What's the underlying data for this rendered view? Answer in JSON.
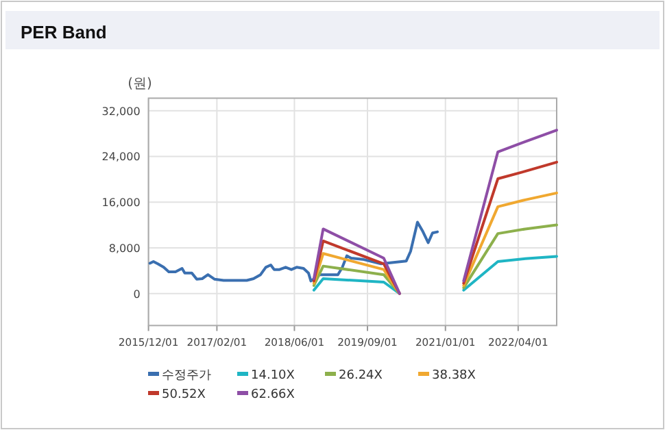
{
  "chart_data": {
    "type": "line",
    "title": "PER Band",
    "ylabel": "(원)",
    "grid": true,
    "legend": "bottom",
    "marker": "none",
    "line_style": "solid",
    "xlim": [
      "2015-12-01",
      "2022-11-28"
    ],
    "xticks": [
      {
        "value": "2015-12-01",
        "label": "2015/12/01"
      },
      {
        "value": "2017-02-01",
        "label": "2017/02/01"
      },
      {
        "value": "2018-06-01",
        "label": "2018/06/01"
      },
      {
        "value": "2019-09-01",
        "label": "2019/09/01"
      },
      {
        "value": "2021-01-01",
        "label": "2021/01/01"
      },
      {
        "value": "2022-04-01",
        "label": "2022/04/01"
      }
    ],
    "ylim": [
      -5600,
      34200
    ],
    "yticks": [
      {
        "value": 0,
        "label": "0"
      },
      {
        "value": 8000,
        "label": "8,000"
      },
      {
        "value": 16000,
        "label": "16,000"
      },
      {
        "value": 24000,
        "label": "24,000"
      },
      {
        "value": 32000,
        "label": "32,000"
      }
    ],
    "series": [
      {
        "name": "수정주가",
        "color": "#3a6fb0",
        "x": [
          "2015-12-10",
          "2016-01-01",
          "2016-01-28",
          "2016-03-05",
          "2016-04-06",
          "2016-05-18",
          "2016-06-28",
          "2016-07-15",
          "2016-08-28",
          "2016-09-28",
          "2016-11-01",
          "2016-12-07",
          "2017-01-18",
          "2017-03-15",
          "2017-08-07",
          "2017-09-18",
          "2017-11-01",
          "2017-12-04",
          "2018-01-04",
          "2018-01-25",
          "2018-02-28",
          "2018-04-07",
          "2018-05-13",
          "2018-06-15",
          "2018-07-28",
          "2018-08-28",
          "2018-09-12",
          "2018-11-07",
          "2019-02-28",
          "2019-03-28",
          "2019-04-25",
          "2019-05-22",
          "2019-08-01",
          "2019-11-25",
          "2020-01-22",
          "2020-05-01",
          "2020-05-28",
          "2020-07-10",
          "2020-08-10",
          "2020-09-15",
          "2020-10-12",
          "2020-11-12"
        ],
        "values": [
          5300,
          5600,
          5200,
          4600,
          3800,
          3800,
          4400,
          3600,
          3600,
          2500,
          2600,
          3300,
          2500,
          2300,
          2300,
          2600,
          3300,
          4600,
          5000,
          4200,
          4200,
          4600,
          4200,
          4600,
          4400,
          3600,
          2200,
          3300,
          3300,
          4600,
          6600,
          6200,
          6000,
          5200,
          5400,
          5700,
          7400,
          12500,
          11000,
          8900,
          10600,
          10800
        ]
      },
      {
        "name": "14.10X",
        "color": "#1fb5c4",
        "x": [
          "2018-10-01",
          "2018-11-28",
          "2019-12-12",
          "2020-03-20"
        ],
        "values": [
          600,
          2600,
          2000,
          0
        ]
      },
      {
        "name": "26.24X",
        "color": "#8db04c",
        "x": [
          "2018-10-01",
          "2018-11-28",
          "2019-12-12",
          "2020-03-20"
        ],
        "values": [
          1400,
          4800,
          3300,
          0
        ]
      },
      {
        "name": "38.38X",
        "color": "#f0a830",
        "x": [
          "2018-10-01",
          "2018-11-28",
          "2019-12-12",
          "2020-03-20"
        ],
        "values": [
          1800,
          7000,
          4200,
          0
        ]
      },
      {
        "name": "50.52X",
        "color": "#c0392b",
        "x": [
          "2018-10-01",
          "2018-11-28",
          "2019-12-12",
          "2020-03-20"
        ],
        "values": [
          2200,
          9200,
          5200,
          0
        ]
      },
      {
        "name": "62.66X",
        "color": "#8e4ea6",
        "x": [
          "2018-10-01",
          "2018-11-28",
          "2019-12-12",
          "2020-03-20"
        ],
        "values": [
          2600,
          11300,
          6200,
          0
        ]
      },
      {
        "color": "#1fb5c4",
        "x": [
          "2021-04-25",
          "2021-11-25",
          "2022-05-15",
          "2022-11-28"
        ],
        "values": [
          600,
          5600,
          6100,
          6500
        ]
      },
      {
        "color": "#8db04c",
        "x": [
          "2021-04-25",
          "2021-11-25",
          "2022-05-15",
          "2022-11-28"
        ],
        "values": [
          1000,
          10500,
          11300,
          12000
        ]
      },
      {
        "color": "#f0a830",
        "x": [
          "2021-04-25",
          "2021-11-25",
          "2022-05-15",
          "2022-11-28"
        ],
        "values": [
          1400,
          15200,
          16400,
          17600
        ]
      },
      {
        "color": "#c0392b",
        "x": [
          "2021-04-25",
          "2021-11-25",
          "2022-05-15",
          "2022-11-28"
        ],
        "values": [
          1800,
          20100,
          21400,
          23000
        ]
      },
      {
        "color": "#8e4ea6",
        "x": [
          "2021-04-25",
          "2021-11-25",
          "2022-05-15",
          "2022-11-28"
        ],
        "values": [
          2200,
          24800,
          26600,
          28600
        ]
      }
    ]
  }
}
